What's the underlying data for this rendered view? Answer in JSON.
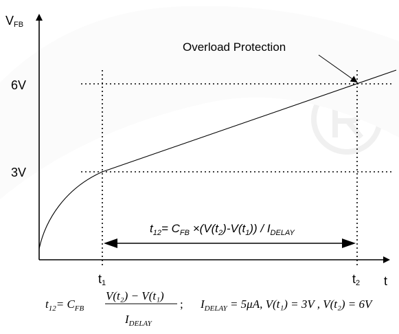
{
  "diagram": {
    "y_axis": {
      "main": "V",
      "sub": "FB"
    },
    "x_axis": {
      "main": "t"
    },
    "levels": [
      "6V",
      "3V"
    ],
    "times": [
      {
        "main": "t",
        "sub": "1"
      },
      {
        "main": "t",
        "sub": "2"
      }
    ],
    "annotation": "Overload Protection",
    "interval": {
      "t12": {
        "main": "t",
        "sub": "12"
      },
      "eq": "= ",
      "cfb": {
        "main": "C",
        "sub": "FB"
      },
      "mid1": " ×(V(t",
      "sub2": "2",
      "mid2": ")-V(t",
      "sub1": "1",
      "mid3": ")) / I",
      "delay_sub": "DELAY"
    },
    "formula": {
      "lhs": {
        "main": "t",
        "sub": "12"
      },
      "eq": "= C",
      "cfb_sub": "FB",
      "numerator": "V(t₂) − V(t₁)",
      "den_main": "I",
      "den_sub": "DELAY",
      "sep": ";",
      "conditions": {
        "i_main": "I",
        "i_sub": "DELAY",
        "i_val": " = 5μA, V(t₁) = 3V , V(t₂) = 6V"
      }
    }
  }
}
